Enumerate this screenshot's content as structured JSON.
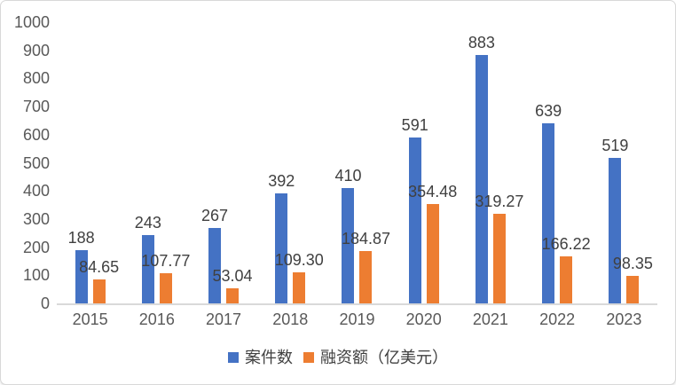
{
  "chart_data": {
    "type": "bar",
    "title": "",
    "xlabel": "",
    "ylabel": "",
    "categories": [
      "2015",
      "2016",
      "2017",
      "2018",
      "2019",
      "2020",
      "2021",
      "2022",
      "2023"
    ],
    "series": [
      {
        "name": "案件数",
        "color": "#4472C4",
        "values": [
          188,
          243,
          267,
          392,
          410,
          591,
          883,
          639,
          519
        ],
        "labels": [
          "188",
          "243",
          "267",
          "392",
          "410",
          "591",
          "883",
          "639",
          "519"
        ]
      },
      {
        "name": "融资额（亿美元）",
        "color": "#ED7D31",
        "values": [
          84.65,
          107.77,
          53.04,
          109.3,
          184.87,
          354.48,
          319.27,
          166.22,
          98.35
        ],
        "labels": [
          "84.65",
          "107.77",
          "53.04",
          "109.30",
          "184.87",
          "354.48",
          "319.27",
          "166.22",
          "98.35"
        ]
      }
    ],
    "ylim": [
      0,
      1000
    ],
    "yticks": [
      0,
      100,
      200,
      300,
      400,
      500,
      600,
      700,
      800,
      900,
      1000
    ],
    "grid": false,
    "legend_position": "bottom"
  },
  "colors": {
    "series_cases": "#4472C4",
    "series_funding": "#ED7D31",
    "axis_line": "#D9D9D9",
    "axis_text": "#595959",
    "data_label_text": "#404040",
    "frame_border": "#D8D8D8"
  }
}
